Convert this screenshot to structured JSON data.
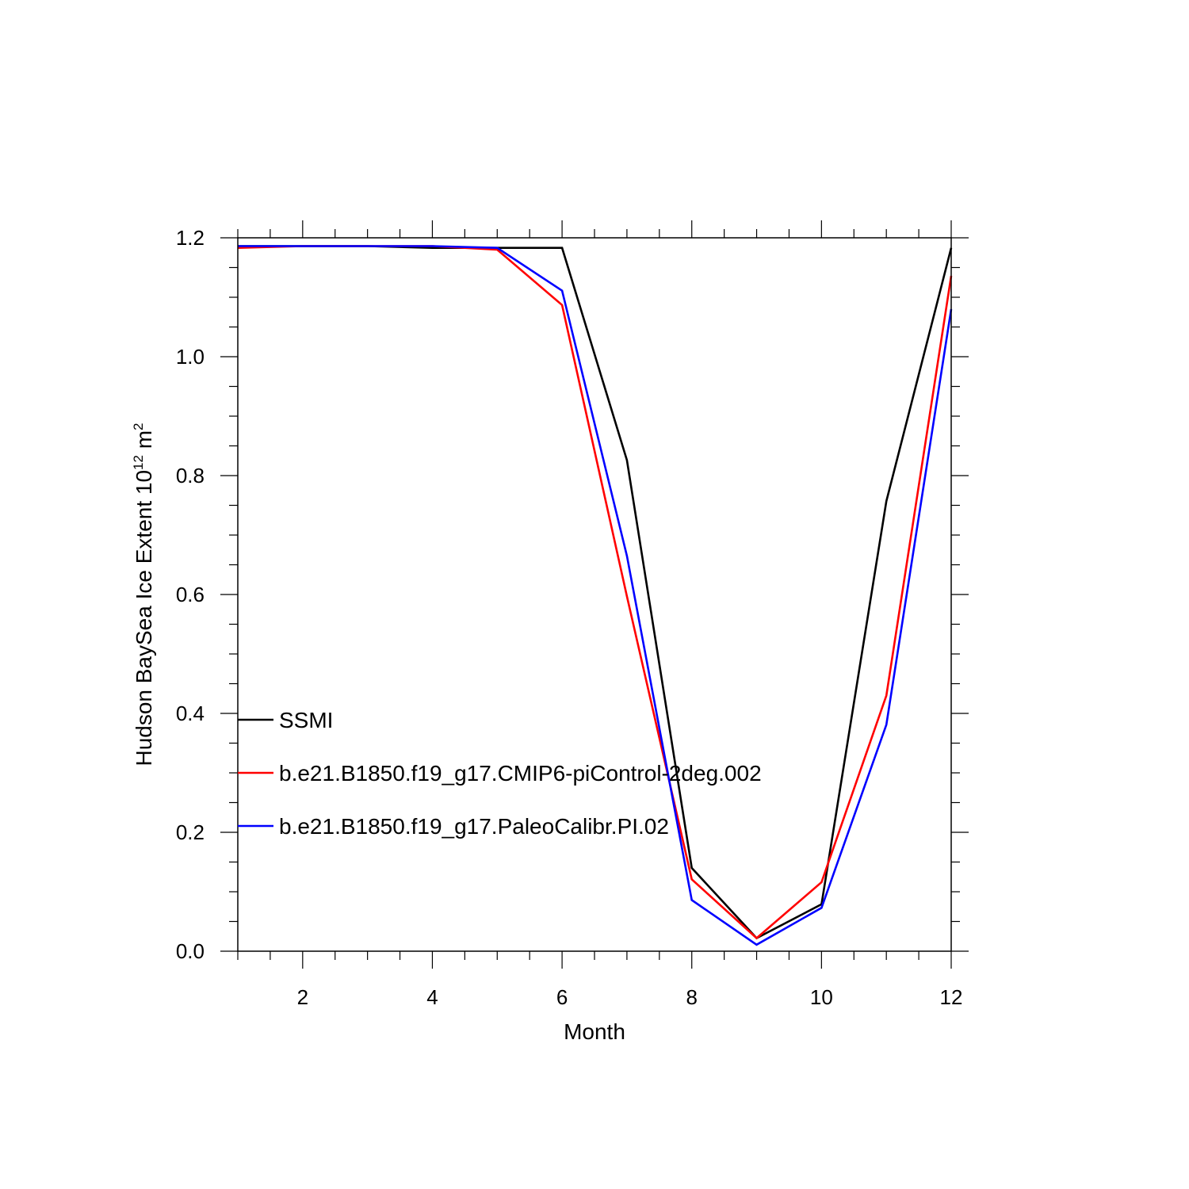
{
  "chart_data": {
    "type": "line",
    "xlabel": "Month",
    "ylabel": {
      "main": "Hudson BaySea Ice Extent 10",
      "exponent": "12",
      "unit": " m",
      "unit_exponent": "2"
    },
    "xlim": [
      1,
      12
    ],
    "ylim": [
      0.0,
      1.2
    ],
    "xticks": [
      2,
      4,
      6,
      8,
      10,
      12
    ],
    "xtick_labels": [
      "2",
      "4",
      "6",
      "8",
      "10",
      "12"
    ],
    "yticks": [
      0.0,
      0.2,
      0.4,
      0.6,
      0.8,
      1.0,
      1.2
    ],
    "ytick_labels": [
      "0.0",
      "0.2",
      "0.4",
      "0.6",
      "0.8",
      "1.0",
      "1.2"
    ],
    "x": [
      1,
      2,
      3,
      4,
      5,
      6,
      7,
      8,
      9,
      10,
      11,
      12
    ],
    "grid": false,
    "legend_position": "left",
    "series": [
      {
        "name": "SSMI",
        "color": "#000000",
        "values": [
          1.186,
          1.186,
          1.186,
          1.183,
          1.183,
          1.183,
          0.826,
          0.14,
          0.022,
          0.079,
          0.757,
          1.183
        ]
      },
      {
        "name": "b.e21.B1850.f19_g17.CMIP6-piControl-2deg.002",
        "color": "#ff0000",
        "values": [
          1.183,
          1.186,
          1.186,
          1.186,
          1.18,
          1.087,
          0.597,
          0.121,
          0.022,
          0.116,
          0.43,
          1.136
        ]
      },
      {
        "name": "b.e21.B1850.f19_g17.PaleoCalibr.PI.02",
        "color": "#0000ff",
        "values": [
          1.186,
          1.186,
          1.186,
          1.186,
          1.183,
          1.111,
          0.665,
          0.086,
          0.011,
          0.073,
          0.381,
          1.08
        ]
      }
    ]
  }
}
